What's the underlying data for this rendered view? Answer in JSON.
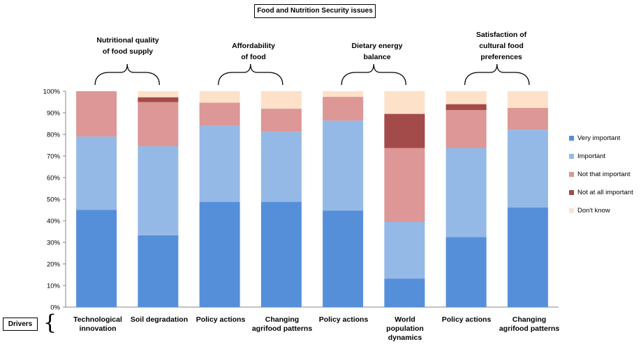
{
  "title": "Food and Nutrition Security issues",
  "groups": [
    {
      "label": "Nutritional quality\nof food supply"
    },
    {
      "label": "Affordability\nof food"
    },
    {
      "label": "Dietary energy\nbalance"
    },
    {
      "label": "Satisfaction of\ncultural food\npreferences"
    }
  ],
  "drivers_label": "Drivers",
  "y_ticks": [
    "0%",
    "10%",
    "20%",
    "30%",
    "40%",
    "50%",
    "60%",
    "70%",
    "80%",
    "90%",
    "100%"
  ],
  "colors": {
    "very_important": "#568fd9",
    "important": "#94b9e6",
    "not_that_important": "#dc9796",
    "not_at_all_important": "#a34a4a",
    "dont_know": "#fde1c9"
  },
  "chart_data": {
    "type": "bar",
    "stacked": true,
    "normalized": true,
    "categories": [
      "Technological\ninnovation",
      "Soil degradation",
      "Policy actions",
      "Changing\nagrifood patterns",
      "Policy actions",
      "World\npopulation\ndynamics",
      "Policy actions",
      "Changing\nagrifood patterns"
    ],
    "series": [
      {
        "name": "Very important",
        "values": [
          45,
          33.3,
          48.7,
          48.7,
          44.7,
          13.2,
          32.4,
          46.2
        ]
      },
      {
        "name": "Important",
        "values": [
          34,
          41.2,
          35.3,
          32.5,
          41.7,
          26.3,
          41.3,
          36.0
        ]
      },
      {
        "name": "Not that important",
        "values": [
          21,
          20.5,
          10.7,
          10.7,
          11.0,
          34.2,
          17.6,
          10.1
        ]
      },
      {
        "name": "Not at all important",
        "values": [
          0,
          2.2,
          0,
          0,
          0,
          15.8,
          2.7,
          0
        ]
      },
      {
        "name": "Don't know",
        "values": [
          0,
          2.8,
          5.3,
          8.1,
          2.6,
          10.5,
          6.0,
          7.7
        ]
      }
    ],
    "ylim": [
      0,
      100
    ],
    "grid": false,
    "legend_position": "right"
  }
}
